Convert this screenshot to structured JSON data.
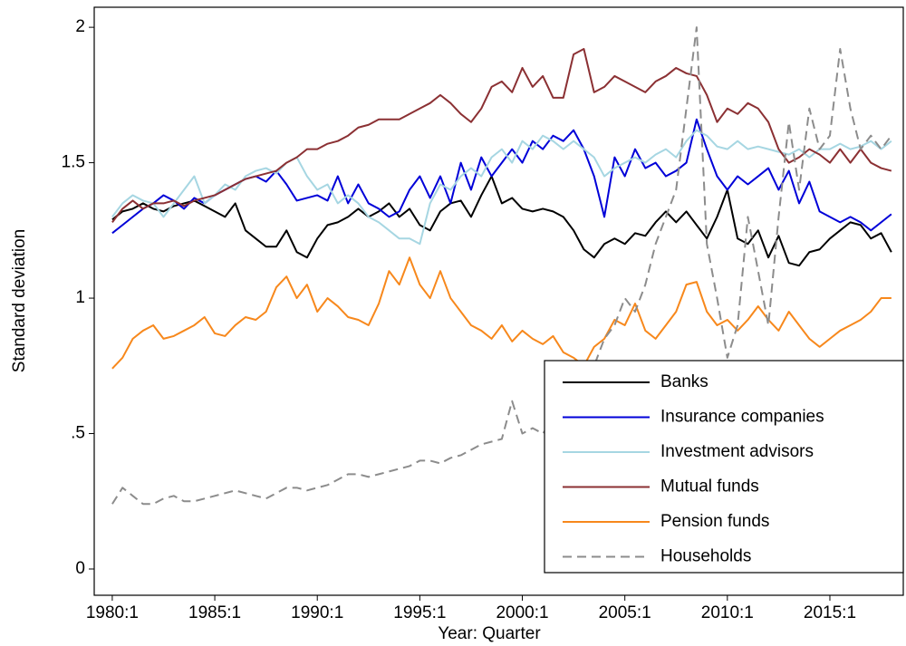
{
  "chart_data": {
    "type": "line",
    "x_label": "Year: Quarter",
    "y_label": "Standard deviation",
    "xlim": [
      1979.12,
      2018.58
    ],
    "ylim": [
      -0.097,
      2.074
    ],
    "xticks": [
      {
        "value": 1980,
        "label": "1980:1"
      },
      {
        "value": 1985,
        "label": "1985:1"
      },
      {
        "value": 1990,
        "label": "1990:1"
      },
      {
        "value": 1995,
        "label": "1995:1"
      },
      {
        "value": 2000,
        "label": "2000:1"
      },
      {
        "value": 2005,
        "label": "2005:1"
      },
      {
        "value": 2010,
        "label": "2010:1"
      },
      {
        "value": 2015,
        "label": "2015:1"
      }
    ],
    "yticks": [
      0,
      {
        "value": 0.5,
        "label": ".5"
      },
      1,
      1.5,
      2
    ],
    "legend": "bottom-right",
    "x": [
      1980,
      1980.5,
      1981,
      1981.5,
      1982,
      1982.5,
      1983,
      1983.5,
      1984,
      1984.5,
      1985,
      1985.5,
      1986,
      1986.5,
      1987,
      1987.5,
      1988,
      1988.5,
      1989,
      1989.5,
      1990,
      1990.5,
      1991,
      1991.5,
      1992,
      1992.5,
      1993,
      1993.5,
      1994,
      1994.5,
      1995,
      1995.5,
      1996,
      1996.5,
      1997,
      1997.5,
      1998,
      1998.5,
      1999,
      1999.5,
      2000,
      2000.5,
      2001,
      2001.5,
      2002,
      2002.5,
      2003,
      2003.5,
      2004,
      2004.5,
      2005,
      2005.5,
      2006,
      2006.5,
      2007,
      2007.5,
      2008,
      2008.5,
      2009,
      2009.5,
      2010,
      2010.5,
      2011,
      2011.5,
      2012,
      2012.5,
      2013,
      2013.5,
      2014,
      2014.5,
      2015,
      2015.5,
      2016,
      2016.5,
      2017,
      2017.5,
      2018
    ],
    "series": [
      {
        "name": "Banks",
        "color": "#000000",
        "style": "solid",
        "values": [
          1.29,
          1.32,
          1.33,
          1.35,
          1.33,
          1.32,
          1.34,
          1.35,
          1.36,
          1.34,
          1.32,
          1.3,
          1.35,
          1.25,
          1.22,
          1.19,
          1.19,
          1.25,
          1.17,
          1.15,
          1.22,
          1.27,
          1.28,
          1.3,
          1.33,
          1.3,
          1.32,
          1.35,
          1.3,
          1.33,
          1.27,
          1.25,
          1.32,
          1.35,
          1.36,
          1.3,
          1.38,
          1.45,
          1.35,
          1.37,
          1.33,
          1.32,
          1.33,
          1.32,
          1.3,
          1.25,
          1.18,
          1.15,
          1.2,
          1.22,
          1.2,
          1.24,
          1.23,
          1.28,
          1.32,
          1.28,
          1.32,
          1.27,
          1.22,
          1.3,
          1.4,
          1.22,
          1.2,
          1.25,
          1.15,
          1.23,
          1.13,
          1.12,
          1.17,
          1.18,
          1.22,
          1.25,
          1.28,
          1.27,
          1.22,
          1.24,
          1.17
        ]
      },
      {
        "name": "Insurance companies",
        "color": "#0000d8",
        "style": "solid",
        "values": [
          1.24,
          1.27,
          1.3,
          1.33,
          1.35,
          1.38,
          1.36,
          1.33,
          1.37,
          1.35,
          1.38,
          1.4,
          1.42,
          1.44,
          1.45,
          1.43,
          1.47,
          1.42,
          1.36,
          1.37,
          1.38,
          1.36,
          1.45,
          1.35,
          1.42,
          1.35,
          1.33,
          1.3,
          1.32,
          1.4,
          1.45,
          1.37,
          1.45,
          1.35,
          1.5,
          1.4,
          1.52,
          1.45,
          1.5,
          1.55,
          1.5,
          1.58,
          1.55,
          1.6,
          1.58,
          1.62,
          1.55,
          1.45,
          1.3,
          1.52,
          1.45,
          1.55,
          1.48,
          1.5,
          1.45,
          1.47,
          1.5,
          1.66,
          1.55,
          1.45,
          1.4,
          1.45,
          1.42,
          1.45,
          1.48,
          1.4,
          1.47,
          1.35,
          1.43,
          1.32,
          1.3,
          1.28,
          1.3,
          1.28,
          1.25,
          1.28,
          1.31
        ]
      },
      {
        "name": "Investment advisors",
        "color": "#a6d6e2",
        "style": "solid",
        "values": [
          1.3,
          1.35,
          1.38,
          1.36,
          1.35,
          1.3,
          1.35,
          1.4,
          1.45,
          1.35,
          1.38,
          1.42,
          1.4,
          1.45,
          1.47,
          1.48,
          1.46,
          1.5,
          1.52,
          1.45,
          1.4,
          1.42,
          1.35,
          1.38,
          1.35,
          1.3,
          1.28,
          1.25,
          1.22,
          1.22,
          1.2,
          1.35,
          1.42,
          1.4,
          1.45,
          1.48,
          1.45,
          1.52,
          1.55,
          1.5,
          1.58,
          1.55,
          1.6,
          1.58,
          1.55,
          1.58,
          1.55,
          1.52,
          1.45,
          1.48,
          1.5,
          1.52,
          1.5,
          1.53,
          1.55,
          1.52,
          1.58,
          1.62,
          1.6,
          1.56,
          1.55,
          1.58,
          1.55,
          1.56,
          1.55,
          1.54,
          1.53,
          1.55,
          1.52,
          1.55,
          1.55,
          1.57,
          1.55,
          1.56,
          1.58,
          1.55,
          1.58
        ]
      },
      {
        "name": "Mutual funds",
        "color": "#8b3033",
        "style": "solid",
        "values": [
          1.28,
          1.33,
          1.36,
          1.33,
          1.35,
          1.35,
          1.36,
          1.34,
          1.36,
          1.37,
          1.38,
          1.4,
          1.42,
          1.44,
          1.45,
          1.46,
          1.47,
          1.5,
          1.52,
          1.55,
          1.55,
          1.57,
          1.58,
          1.6,
          1.63,
          1.64,
          1.66,
          1.66,
          1.66,
          1.68,
          1.7,
          1.72,
          1.75,
          1.72,
          1.68,
          1.65,
          1.7,
          1.78,
          1.8,
          1.76,
          1.85,
          1.78,
          1.82,
          1.74,
          1.74,
          1.9,
          1.92,
          1.76,
          1.78,
          1.82,
          1.8,
          1.78,
          1.76,
          1.8,
          1.82,
          1.85,
          1.83,
          1.82,
          1.75,
          1.65,
          1.7,
          1.68,
          1.72,
          1.7,
          1.65,
          1.55,
          1.5,
          1.52,
          1.55,
          1.53,
          1.5,
          1.55,
          1.5,
          1.55,
          1.5,
          1.48,
          1.47
        ]
      },
      {
        "name": "Pension funds",
        "color": "#f7881c",
        "style": "solid",
        "values": [
          0.74,
          0.78,
          0.85,
          0.88,
          0.9,
          0.85,
          0.86,
          0.88,
          0.9,
          0.93,
          0.87,
          0.86,
          0.9,
          0.93,
          0.92,
          0.95,
          1.04,
          1.08,
          1.0,
          1.05,
          0.95,
          1.0,
          0.97,
          0.93,
          0.92,
          0.9,
          0.98,
          1.1,
          1.05,
          1.15,
          1.05,
          1.0,
          1.1,
          1.0,
          0.95,
          0.9,
          0.88,
          0.85,
          0.9,
          0.84,
          0.88,
          0.85,
          0.83,
          0.86,
          0.8,
          0.78,
          0.75,
          0.82,
          0.85,
          0.92,
          0.9,
          0.98,
          0.88,
          0.85,
          0.9,
          0.95,
          1.05,
          1.06,
          0.95,
          0.9,
          0.92,
          0.88,
          0.92,
          0.97,
          0.92,
          0.88,
          0.95,
          0.9,
          0.85,
          0.82,
          0.85,
          0.88,
          0.9,
          0.92,
          0.95,
          1.0,
          1.0
        ]
      },
      {
        "name": "Households",
        "color": "#8c8c8c",
        "style": "dashed",
        "values": [
          0.24,
          0.3,
          0.27,
          0.24,
          0.24,
          0.26,
          0.27,
          0.25,
          0.25,
          0.26,
          0.27,
          0.28,
          0.29,
          0.28,
          0.27,
          0.26,
          0.28,
          0.3,
          0.3,
          0.29,
          0.3,
          0.31,
          0.33,
          0.35,
          0.35,
          0.34,
          0.35,
          0.36,
          0.37,
          0.38,
          0.4,
          0.4,
          0.39,
          0.41,
          0.42,
          0.44,
          0.46,
          0.47,
          0.48,
          0.62,
          0.5,
          0.52,
          0.5,
          0.55,
          0.6,
          0.65,
          0.7,
          0.75,
          0.85,
          0.9,
          1.0,
          0.95,
          1.05,
          1.2,
          1.3,
          1.4,
          1.7,
          2.0,
          1.2,
          1.0,
          0.78,
          0.9,
          1.3,
          1.1,
          0.9,
          1.3,
          1.65,
          1.4,
          1.7,
          1.55,
          1.6,
          1.92,
          1.7,
          1.55,
          1.6,
          1.55,
          1.6
        ]
      }
    ]
  }
}
